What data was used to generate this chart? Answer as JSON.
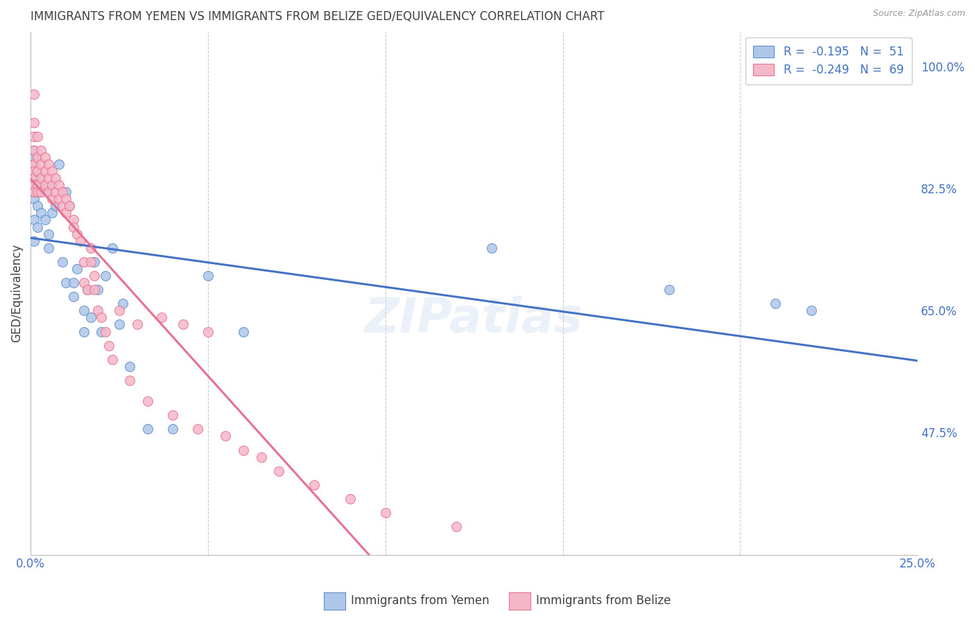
{
  "title": "IMMIGRANTS FROM YEMEN VS IMMIGRANTS FROM BELIZE GED/EQUIVALENCY CORRELATION CHART",
  "source": "Source: ZipAtlas.com",
  "ylabel": "GED/Equivalency",
  "xlim": [
    0.0,
    0.25
  ],
  "ylim": [
    0.3,
    1.05
  ],
  "yticks": [
    0.475,
    0.65,
    0.825,
    1.0
  ],
  "ytick_labels": [
    "47.5%",
    "65.0%",
    "82.5%",
    "100.0%"
  ],
  "xticks": [
    0.0,
    0.05,
    0.1,
    0.15,
    0.2,
    0.25
  ],
  "xtick_labels": [
    "0.0%",
    "",
    "",
    "",
    "",
    "25.0%"
  ],
  "yemen_R": -0.195,
  "yemen_N": 51,
  "belize_R": -0.249,
  "belize_N": 69,
  "yemen_color": "#aec6e8",
  "belize_color": "#f5b8c8",
  "yemen_edge_color": "#5b8fcc",
  "belize_edge_color": "#e87090",
  "yemen_line_color": "#4472c4",
  "belize_line_color": "#e87090",
  "title_color": "#404040",
  "tick_color": "#4472c4",
  "grid_color": "#cccccc",
  "watermark": "ZIPatlas",
  "legend_text_color": "#4472c4",
  "yemen_scatter_x": [
    0.001,
    0.001,
    0.001,
    0.001,
    0.001,
    0.001,
    0.001,
    0.001,
    0.001,
    0.001,
    0.002,
    0.002,
    0.003,
    0.003,
    0.003,
    0.004,
    0.004,
    0.005,
    0.005,
    0.005,
    0.006,
    0.006,
    0.007,
    0.008,
    0.009,
    0.01,
    0.01,
    0.011,
    0.012,
    0.012,
    0.013,
    0.015,
    0.015,
    0.016,
    0.017,
    0.018,
    0.019,
    0.02,
    0.021,
    0.023,
    0.025,
    0.026,
    0.028,
    0.033,
    0.04,
    0.05,
    0.06,
    0.13,
    0.18,
    0.21,
    0.22
  ],
  "yemen_scatter_y": [
    0.75,
    0.78,
    0.83,
    0.81,
    0.82,
    0.84,
    0.85,
    0.86,
    0.87,
    0.88,
    0.8,
    0.77,
    0.84,
    0.82,
    0.79,
    0.83,
    0.78,
    0.82,
    0.76,
    0.74,
    0.83,
    0.79,
    0.8,
    0.86,
    0.72,
    0.82,
    0.69,
    0.8,
    0.69,
    0.67,
    0.71,
    0.62,
    0.65,
    0.68,
    0.64,
    0.72,
    0.68,
    0.62,
    0.7,
    0.74,
    0.63,
    0.66,
    0.57,
    0.48,
    0.48,
    0.7,
    0.62,
    0.74,
    0.68,
    0.66,
    0.65
  ],
  "belize_scatter_x": [
    0.001,
    0.001,
    0.001,
    0.001,
    0.001,
    0.001,
    0.001,
    0.001,
    0.001,
    0.002,
    0.002,
    0.002,
    0.002,
    0.002,
    0.003,
    0.003,
    0.003,
    0.003,
    0.004,
    0.004,
    0.004,
    0.005,
    0.005,
    0.005,
    0.006,
    0.006,
    0.006,
    0.007,
    0.007,
    0.008,
    0.008,
    0.009,
    0.009,
    0.01,
    0.01,
    0.011,
    0.012,
    0.012,
    0.013,
    0.014,
    0.015,
    0.015,
    0.016,
    0.017,
    0.017,
    0.018,
    0.018,
    0.019,
    0.02,
    0.021,
    0.022,
    0.023,
    0.025,
    0.028,
    0.03,
    0.033,
    0.037,
    0.04,
    0.043,
    0.047,
    0.05,
    0.055,
    0.06,
    0.065,
    0.07,
    0.08,
    0.09,
    0.1,
    0.12
  ],
  "belize_scatter_y": [
    0.96,
    0.92,
    0.9,
    0.88,
    0.86,
    0.85,
    0.84,
    0.83,
    0.82,
    0.9,
    0.87,
    0.85,
    0.83,
    0.82,
    0.88,
    0.86,
    0.84,
    0.82,
    0.87,
    0.85,
    0.83,
    0.86,
    0.84,
    0.82,
    0.85,
    0.83,
    0.81,
    0.84,
    0.82,
    0.83,
    0.81,
    0.82,
    0.8,
    0.81,
    0.79,
    0.8,
    0.78,
    0.77,
    0.76,
    0.75,
    0.72,
    0.69,
    0.68,
    0.74,
    0.72,
    0.7,
    0.68,
    0.65,
    0.64,
    0.62,
    0.6,
    0.58,
    0.65,
    0.55,
    0.63,
    0.52,
    0.64,
    0.5,
    0.63,
    0.48,
    0.62,
    0.47,
    0.45,
    0.44,
    0.42,
    0.4,
    0.38,
    0.36,
    0.34
  ],
  "background_color": "#ffffff"
}
